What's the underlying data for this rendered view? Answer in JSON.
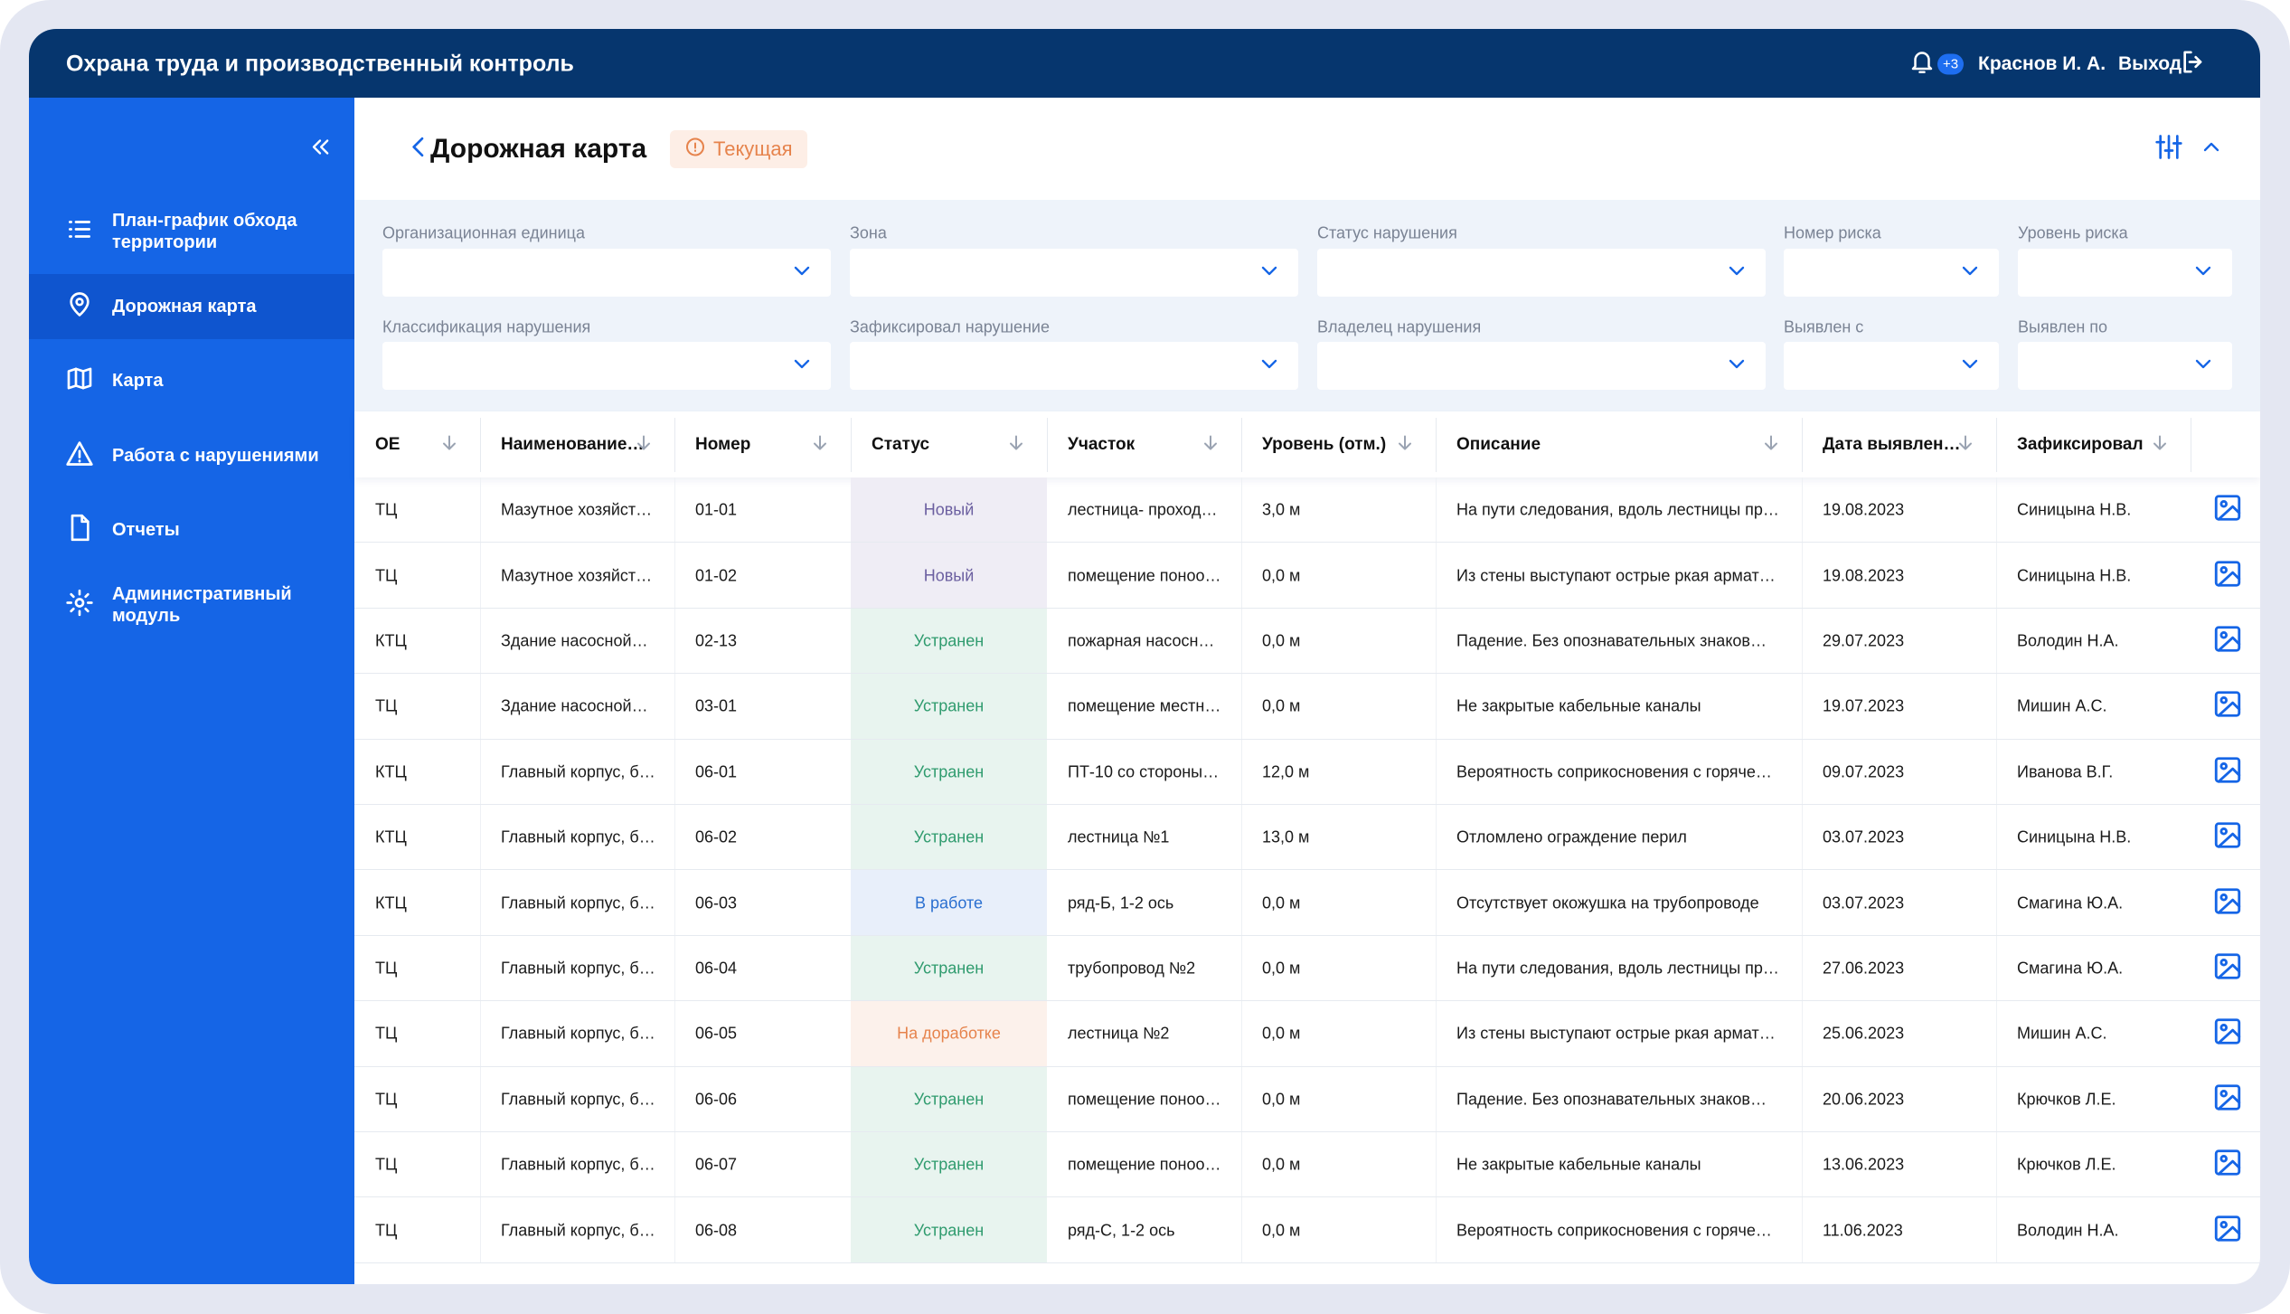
{
  "header": {
    "title": "Охрана труда и производственный контроль",
    "notifications": "+3",
    "user": "Краснов И. А.",
    "logout": "Выход"
  },
  "sidebar": {
    "items": [
      "План-график обхода территории",
      "Дорожная карта",
      "Карта",
      "Работа с нарушениями",
      "Отчеты",
      "Административный модуль"
    ],
    "active": 1
  },
  "page": {
    "title": "Дорожная карта",
    "status": "Текущая"
  },
  "filters": [
    "Организационная единица",
    "Зона",
    "Статус нарушения",
    "Номер риска",
    "Уровень риска",
    "Классификация нарушения",
    "Зафиксировал нарушение",
    "Владелец нарушения",
    "Выявлен с",
    "Выявлен по"
  ],
  "table": {
    "columns": [
      "ОЕ",
      "Наименование…",
      "Номер",
      "Статус",
      "Участок",
      "Уровень (отм.)",
      "Описание",
      "Дата выявлен…",
      "Зафиксировал"
    ],
    "rows": [
      [
        "ТЦ",
        "Мазутное хозяйст…",
        "01-01",
        "Новый",
        "лестница- проход…",
        "3,0 м",
        "На пути следования, вдоль лестницы пр…",
        "19.08.2023",
        "Синицына Н.В."
      ],
      [
        "ТЦ",
        "Мазутное хозяйст…",
        "01-02",
        "Новый",
        "помещение поноо…",
        "0,0 м",
        "Из стены выступают острые ркая армат…",
        "19.08.2023",
        "Синицына Н.В."
      ],
      [
        "КТЦ",
        "Здание насосной…",
        "02-13",
        "Устранен",
        "пожарная насосн…",
        "0,0 м",
        "Падение. Без опознавательных знаков…",
        "29.07.2023",
        "Володин Н.А."
      ],
      [
        "ТЦ",
        "Здание насосной…",
        "03-01",
        "Устранен",
        "помещение местн…",
        "0,0 м",
        "Не закрытые кабельные каналы",
        "19.07.2023",
        "Мишин А.С."
      ],
      [
        "КТЦ",
        "Главный корпус, б…",
        "06-01",
        "Устранен",
        "ПТ-10 со стороны…",
        "12,0 м",
        "Вероятность соприкосновения с горяче…",
        "09.07.2023",
        "Иванова В.Г."
      ],
      [
        "КТЦ",
        "Главный корпус, б…",
        "06-02",
        "Устранен",
        "лестница №1",
        "13,0 м",
        "Отломлено ограждение перил",
        "03.07.2023",
        "Синицына Н.В."
      ],
      [
        "КТЦ",
        "Главный корпус, б…",
        "06-03",
        "В работе",
        "ряд-Б, 1-2 ось",
        "0,0 м",
        "Отсутствует окожушка на трубопроводе",
        "03.07.2023",
        "Смагина Ю.А."
      ],
      [
        "ТЦ",
        "Главный корпус, б…",
        "06-04",
        "Устранен",
        "трубопровод №2",
        "0,0 м",
        "На пути следования, вдоль лестницы пр…",
        "27.06.2023",
        "Смагина Ю.А."
      ],
      [
        "ТЦ",
        "Главный корпус, б…",
        "06-05",
        "На доработке",
        "лестница №2",
        "0,0 м",
        "Из стены выступают острые ркая армат…",
        "25.06.2023",
        "Мишин А.С."
      ],
      [
        "ТЦ",
        "Главный корпус, б…",
        "06-06",
        "Устранен",
        "помещение поноо…",
        "0,0 м",
        "Падение. Без опознавательных знаков…",
        "20.06.2023",
        "Крючков Л.Е."
      ],
      [
        "ТЦ",
        "Главный корпус, б…",
        "06-07",
        "Устранен",
        "помещение поноо…",
        "0,0 м",
        "Не закрытые кабельные каналы",
        "13.06.2023",
        "Крючков Л.Е."
      ],
      [
        "ТЦ",
        "Главный корпус, б…",
        "06-08",
        "Устранен",
        "ряд-С, 1-2 ось",
        "0,0 м",
        "Вероятность соприкосновения с горяче…",
        "11.06.2023",
        "Володин Н.А."
      ]
    ],
    "status_colors": [
      "#6b5fa0",
      "#6b5fa0",
      "#2f9b6e",
      "#2f9b6e",
      "#2f9b6e",
      "#2f9b6e",
      "#2a6fd0",
      "#2f9b6e",
      "#e6834c",
      "#2f9b6e",
      "#2f9b6e",
      "#2f9b6e"
    ]
  }
}
